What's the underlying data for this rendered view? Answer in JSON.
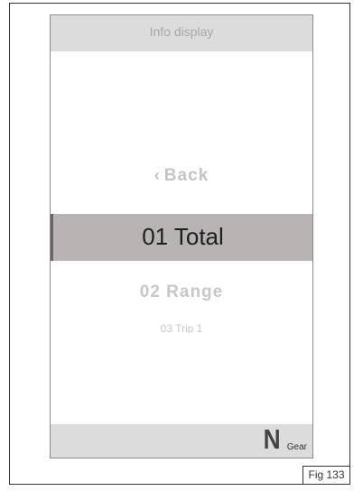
{
  "header": {
    "title": "Info display"
  },
  "menu": {
    "back_label": "Back",
    "back_icon": "chevron-left-icon",
    "selected_label": "01 Total",
    "items": [
      "02 Range",
      "03 Trip 1"
    ]
  },
  "footer": {
    "gear_value": "N",
    "gear_label": "Gear"
  },
  "figure": {
    "label": "Fig 133"
  },
  "colors": {
    "header_bg": "#dcdcdc",
    "selected_bg": "#b8b4b4",
    "inactive_text": "#c4c4c4"
  }
}
